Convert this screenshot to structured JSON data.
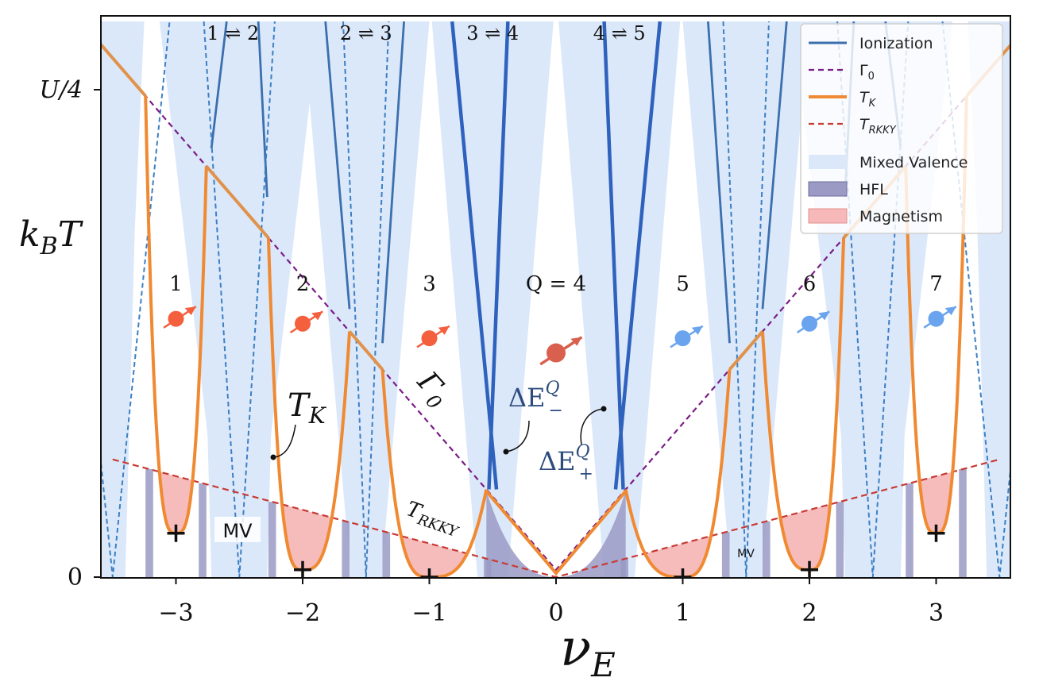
{
  "chart_data": {
    "type": "line",
    "title": "",
    "xlabel": "ν_E",
    "ylabel": "k_B T",
    "xlim": [
      -3.6,
      3.6
    ],
    "ylim": [
      0,
      1.13
    ],
    "x_ticks": [
      {
        "value": -3,
        "label": "−3"
      },
      {
        "value": -2,
        "label": "−2"
      },
      {
        "value": -1,
        "label": "−1"
      },
      {
        "value": 0,
        "label": "0"
      },
      {
        "value": 1,
        "label": "1"
      },
      {
        "value": 2,
        "label": "2"
      },
      {
        "value": 3,
        "label": "3"
      }
    ],
    "y_ticks": [
      {
        "value": 0,
        "label": "0"
      },
      {
        "value": 1,
        "label": "U/4"
      }
    ],
    "gamma0": {
      "slope": 0.3,
      "offset": 0.015
    },
    "trkky": {
      "slope": 0.069,
      "offset": 0
    },
    "mixed_valence_cores": [
      {
        "center": -2.5,
        "half_width": 0.22
      },
      {
        "center": -1.5,
        "half_width": 0.13
      },
      {
        "center": -0.5,
        "half_width": 0.06
      },
      {
        "center": 0.5,
        "half_width": 0.06
      },
      {
        "center": 1.5,
        "half_width": 0.13
      },
      {
        "center": 2.5,
        "half_width": 0.22
      },
      {
        "center": -3.5,
        "half_width": 0.1
      },
      {
        "center": 3.5,
        "half_width": 0.1
      }
    ],
    "series": [
      {
        "name": "Ionization",
        "style": "solid",
        "color": "#3b6fae"
      },
      {
        "name": "Γ₀",
        "style": "dashed",
        "color": "#7a1c86"
      },
      {
        "name": "T_K",
        "style": "solid",
        "color": "#f08a32"
      },
      {
        "name": "T_RKKY",
        "style": "dashed",
        "color": "#c83a34"
      }
    ],
    "regions": [
      {
        "name": "Mixed Valence",
        "color": "#dbe8fa"
      },
      {
        "name": "HFL",
        "color": "#9a9ac4"
      },
      {
        "name": "Magnetism",
        "color": "#f6b8b8"
      }
    ],
    "tk_minima": [
      {
        "x": -3,
        "y": 0.09
      },
      {
        "x": -2,
        "y": 0.015
      },
      {
        "x": -1,
        "y": 0.0
      },
      {
        "x": 1,
        "y": 0.0
      },
      {
        "x": 2,
        "y": 0.015
      },
      {
        "x": 3,
        "y": 0.09
      }
    ],
    "charge_sectors": [
      {
        "x": -3,
        "label": "1",
        "spin_color": "#f4603e"
      },
      {
        "x": -2,
        "label": "2",
        "spin_color": "#f4603e"
      },
      {
        "x": -1,
        "label": "3",
        "spin_color": "#f4603e"
      },
      {
        "x": 0,
        "label": "Q = 4",
        "spin_color": "#d9604e"
      },
      {
        "x": 1,
        "label": "5",
        "spin_color": "#6aa4ee"
      },
      {
        "x": 2,
        "label": "6",
        "spin_color": "#6aa4ee"
      },
      {
        "x": 3,
        "label": "7",
        "spin_color": "#6aa4ee"
      }
    ],
    "transitions": [
      "1 ⇌ 2",
      "2 ⇌ 3",
      "3 ⇌ 4",
      "4 ⇌ 5"
    ],
    "annotations": {
      "tk": "T_K",
      "gamma0": "Γ_0",
      "trkky": "T_RKKY",
      "de_minus": "ΔE_−^Q",
      "de_plus": "ΔE_+^Q",
      "mv_big": "MV",
      "mv_small": "MV"
    },
    "legend_position": "top-right"
  },
  "labels": {
    "x_axis_main": "ν",
    "x_axis_sub": "E",
    "y_axis_main": "k",
    "y_axis_sub": "B",
    "y_axis_tail": "T",
    "legend": {
      "ionization": "Ionization",
      "gamma0_main": "Γ",
      "gamma0_sub": "0",
      "tk_main": "T",
      "tk_sub": "K",
      "trkky_main": "T",
      "trkky_sub": "RKKY",
      "mixed_valence": "Mixed Valence",
      "hfl": "HFL",
      "magnetism": "Magnetism"
    },
    "annot": {
      "tk_main": "T",
      "tk_sub": "K",
      "gamma_main": "Γ",
      "gamma_sub": "0",
      "trkky_main": "T",
      "trkky_sub": "RKKY",
      "de_main": "ΔE",
      "de_sup": "Q",
      "de_minus_sub": "−",
      "de_plus_sub": "+",
      "mv_big": "MV",
      "mv_small": "MV"
    }
  }
}
